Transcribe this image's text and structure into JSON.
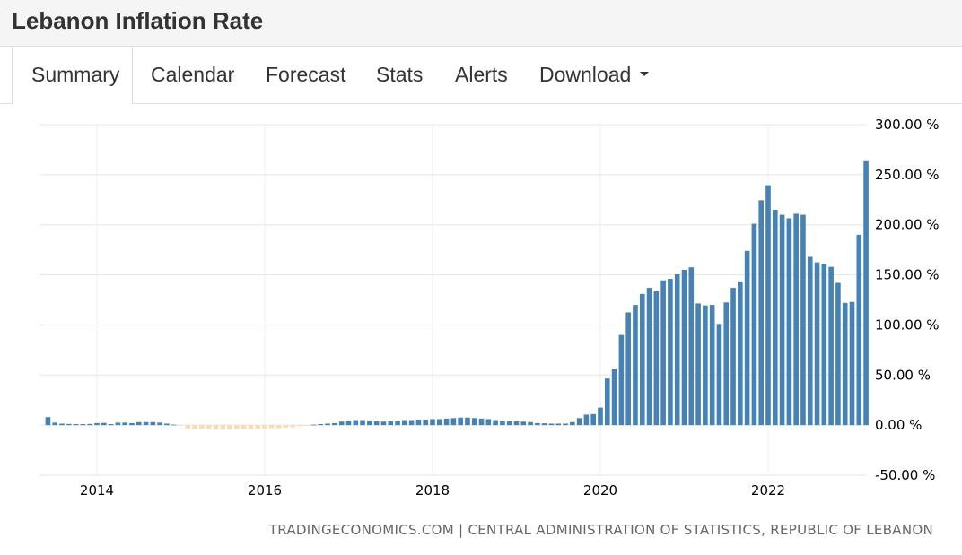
{
  "page": {
    "title": "Lebanon Inflation Rate"
  },
  "tabs": [
    {
      "label": "Summary",
      "active": true
    },
    {
      "label": "Calendar",
      "active": false
    },
    {
      "label": "Forecast",
      "active": false
    },
    {
      "label": "Stats",
      "active": false
    },
    {
      "label": "Alerts",
      "active": false
    },
    {
      "label": "Download",
      "active": false
    }
  ],
  "source": "TRADINGECONOMICS.COM | CENTRAL ADMINISTRATION OF STATISTICS, REPUBLIC OF LEBANON",
  "chart_data": {
    "type": "bar",
    "title": "",
    "xlabel": "",
    "ylabel": "",
    "ylim": [
      -50,
      300
    ],
    "y_ticks": [
      "300.00 %",
      "250.00 %",
      "200.00 %",
      "150.00 %",
      "100.00 %",
      "50.00 %",
      "0.00 %",
      "-50.00 %"
    ],
    "y_tick_values": [
      300,
      250,
      200,
      150,
      100,
      50,
      0,
      -50
    ],
    "x_ticks": [
      "2014",
      "2016",
      "2018",
      "2020",
      "2022"
    ],
    "x_tick_values": [
      "2014-01",
      "2016-01",
      "2018-01",
      "2020-01",
      "2022-01"
    ],
    "grid": true,
    "colors": {
      "positive": "#4682b4",
      "negative": "#f5deb3"
    },
    "series": [
      {
        "start": "2013-06",
        "frequency": "monthly",
        "values": [
          8.0,
          2.5,
          1.5,
          1.2,
          1.0,
          1.0,
          1.2,
          2.0,
          2.2,
          1.0,
          2.5,
          2.5,
          2.0,
          3.0,
          3.0,
          3.0,
          2.5,
          1.5,
          0.5,
          -0.3,
          -3.5,
          -4.0,
          -4.0,
          -4.0,
          -4.5,
          -4.5,
          -4.5,
          -4.0,
          -4.0,
          -3.8,
          -3.5,
          -3.5,
          -3.0,
          -3.0,
          -2.5,
          -2.2,
          -1.0,
          -0.5,
          0.5,
          1.0,
          1.5,
          2.0,
          3.5,
          4.5,
          5.0,
          5.0,
          4.5,
          4.0,
          3.5,
          4.0,
          4.5,
          5.0,
          5.0,
          5.5,
          5.5,
          6.0,
          6.0,
          6.5,
          7.0,
          7.5,
          7.5,
          7.0,
          6.5,
          6.0,
          5.0,
          4.5,
          4.0,
          4.0,
          3.5,
          3.0,
          2.0,
          1.8,
          1.5,
          1.5,
          1.5,
          3.0,
          7.0,
          10.5,
          11.0,
          17.5,
          46.5,
          56.5,
          90.0,
          112.5,
          120.0,
          131.0,
          137.0,
          133.5,
          144.5,
          146.0,
          150.5,
          155.0,
          157.5,
          121.5,
          119.5,
          120.0,
          101.0,
          122.5,
          137.0,
          143.5,
          174.0,
          201.0,
          224.5,
          239.5,
          215.0,
          210.0,
          206.5,
          211.0,
          210.0,
          168.0,
          162.5,
          161.0,
          158.0,
          142.0,
          122.0,
          123.0,
          190.0,
          263.5
        ]
      }
    ]
  }
}
